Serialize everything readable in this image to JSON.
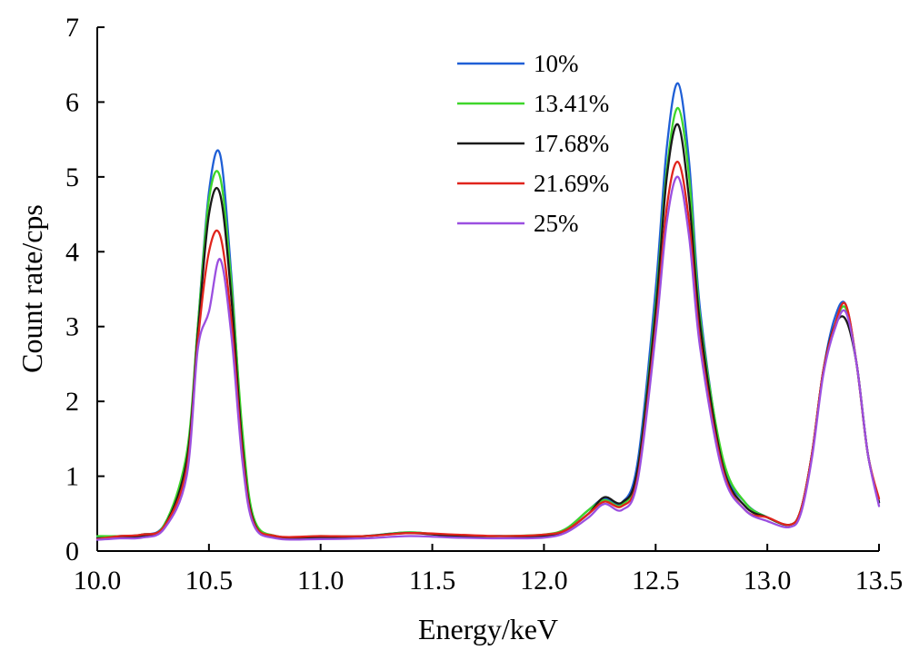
{
  "chart_data": {
    "type": "line",
    "title": "",
    "xlabel": "Energy/keV",
    "ylabel": "Count rate/cps",
    "xlim": [
      10.0,
      13.5
    ],
    "ylim": [
      0,
      7
    ],
    "xticks": [
      "10.0",
      "10.5",
      "11.0",
      "11.5",
      "12.0",
      "12.5",
      "13.0",
      "13.5"
    ],
    "yticks": [
      "0",
      "1",
      "2",
      "3",
      "4",
      "5",
      "6",
      "7"
    ],
    "grid": false,
    "legend_position": "top-center",
    "x": [
      10.0,
      10.1,
      10.2,
      10.3,
      10.4,
      10.45,
      10.5,
      10.55,
      10.6,
      10.65,
      10.7,
      10.8,
      11.0,
      11.2,
      11.4,
      11.6,
      11.8,
      12.0,
      12.1,
      12.2,
      12.27,
      12.35,
      12.42,
      12.5,
      12.55,
      12.6,
      12.65,
      12.7,
      12.8,
      12.9,
      13.0,
      13.1,
      13.15,
      13.2,
      13.25,
      13.3,
      13.35,
      13.4,
      13.45,
      13.5
    ],
    "series": [
      {
        "name": "10%",
        "color": "#1f5fd6",
        "values": [
          0.18,
          0.2,
          0.22,
          0.35,
          1.2,
          3.0,
          4.8,
          5.3,
          3.7,
          1.5,
          0.4,
          0.2,
          0.18,
          0.2,
          0.25,
          0.2,
          0.2,
          0.2,
          0.3,
          0.55,
          0.7,
          0.65,
          1.2,
          3.5,
          5.4,
          6.25,
          5.2,
          3.2,
          1.2,
          0.65,
          0.45,
          0.35,
          0.55,
          1.3,
          2.4,
          3.1,
          3.3,
          2.5,
          1.3,
          0.65
        ]
      },
      {
        "name": "13.41%",
        "color": "#3ed62a",
        "values": [
          0.2,
          0.2,
          0.22,
          0.35,
          1.3,
          3.0,
          4.7,
          5.0,
          3.6,
          1.6,
          0.45,
          0.2,
          0.2,
          0.2,
          0.25,
          0.2,
          0.2,
          0.22,
          0.3,
          0.55,
          0.68,
          0.62,
          1.1,
          3.3,
          5.1,
          5.92,
          5.0,
          3.1,
          1.25,
          0.65,
          0.45,
          0.35,
          0.55,
          1.3,
          2.4,
          3.0,
          3.25,
          2.5,
          1.3,
          0.65
        ]
      },
      {
        "name": "17.68%",
        "color": "#1a1a1a",
        "values": [
          0.17,
          0.18,
          0.2,
          0.33,
          1.2,
          2.9,
          4.5,
          4.77,
          3.4,
          1.4,
          0.4,
          0.18,
          0.18,
          0.2,
          0.24,
          0.2,
          0.2,
          0.2,
          0.28,
          0.5,
          0.72,
          0.65,
          1.1,
          3.2,
          5.0,
          5.7,
          4.7,
          3.0,
          1.15,
          0.6,
          0.45,
          0.35,
          0.55,
          1.3,
          2.4,
          3.0,
          3.1,
          2.5,
          1.3,
          0.65
        ]
      },
      {
        "name": "21.69%",
        "color": "#e0241c",
        "values": [
          0.16,
          0.2,
          0.22,
          0.33,
          1.1,
          2.8,
          4.0,
          4.22,
          3.1,
          1.3,
          0.38,
          0.2,
          0.2,
          0.2,
          0.24,
          0.22,
          0.2,
          0.22,
          0.28,
          0.5,
          0.66,
          0.6,
          1.0,
          3.0,
          4.6,
          5.2,
          4.4,
          2.8,
          1.1,
          0.55,
          0.45,
          0.35,
          0.55,
          1.3,
          2.4,
          3.0,
          3.3,
          2.5,
          1.3,
          0.7
        ]
      },
      {
        "name": "25%",
        "color": "#9b4fe0",
        "values": [
          0.15,
          0.17,
          0.18,
          0.3,
          1.0,
          2.7,
          3.2,
          3.9,
          2.9,
          1.2,
          0.35,
          0.17,
          0.16,
          0.17,
          0.2,
          0.18,
          0.17,
          0.18,
          0.25,
          0.45,
          0.63,
          0.55,
          0.95,
          2.9,
          4.4,
          5.0,
          4.2,
          2.7,
          1.05,
          0.55,
          0.4,
          0.32,
          0.5,
          1.25,
          2.35,
          2.95,
          3.2,
          2.5,
          1.3,
          0.6
        ]
      }
    ]
  }
}
